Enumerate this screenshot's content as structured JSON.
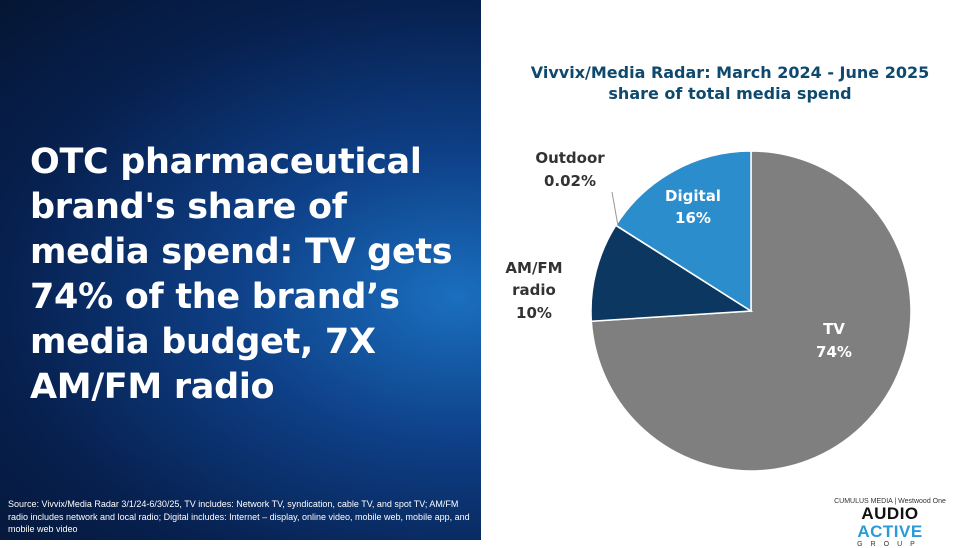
{
  "headline": "OTC pharmaceutical brand's share of media spend: TV gets 74% of the brand’s media budget, 7X AM/FM radio",
  "source": "Source: Vivvix/Media Radar 3/1/24-6/30/25, TV includes: Network TV, syndication, cable TV, and spot TV; AM/FM radio includes network and local radio; Digital includes:  Internet – display, online video, mobile web, mobile app, and mobile web video",
  "logo": {
    "top": "CUMULUS MEDIA | Westwood One",
    "word1": "AUDIO",
    "word2": "ACTIVE",
    "word3": "GROUP"
  },
  "chart_data": {
    "type": "pie",
    "title": "Vivvix/Media Radar: March 2024 - June 2025 share of total media spend",
    "slices": [
      {
        "name": "TV",
        "value": 74,
        "label": "74%",
        "color": "#7f7f7f"
      },
      {
        "name": "AM/FM radio",
        "value": 10,
        "label": "10%",
        "color": "#0c3760"
      },
      {
        "name": "Outdoor",
        "value": 0.02,
        "label": "0.02%",
        "color": "#5a7fa8"
      },
      {
        "name": "Digital",
        "value": 16,
        "label": "16%",
        "color": "#2b8dcb"
      }
    ]
  }
}
